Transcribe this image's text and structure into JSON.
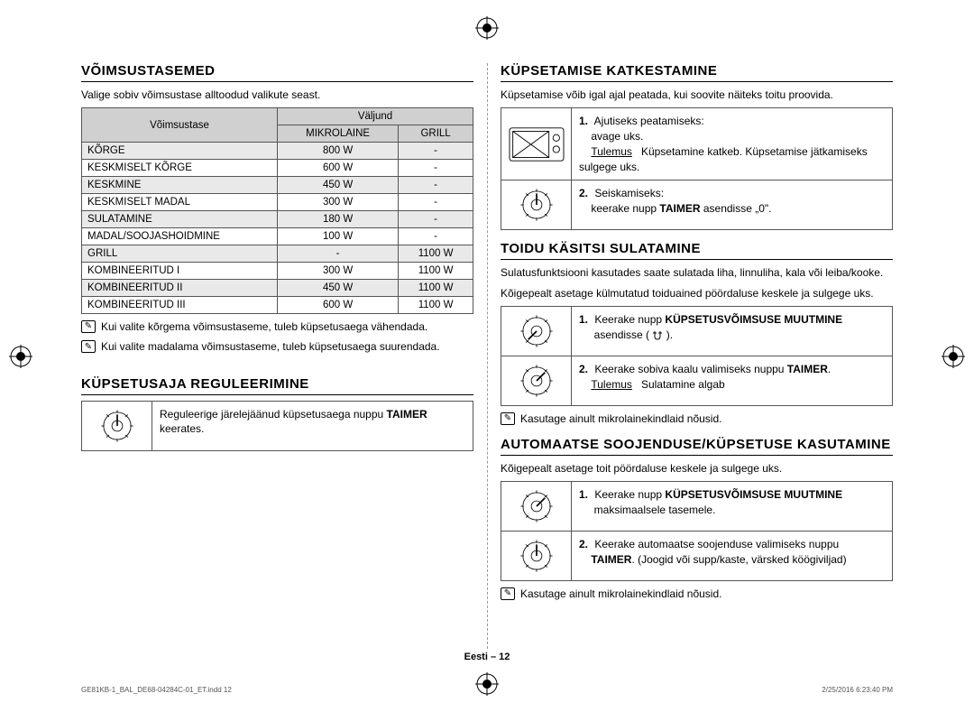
{
  "left": {
    "sec1_title": "VÕIMSUSTASEMED",
    "sec1_intro": "Valige sobiv võimsustase alltoodud valikute seast.",
    "table": {
      "col_level": "Võimsustase",
      "col_output": "Väljund",
      "col_mw": "MIKROLAINE",
      "col_grill": "GRILL",
      "rows": [
        {
          "l": "KÕRGE",
          "m": "800 W",
          "g": "-"
        },
        {
          "l": "KESKMISELT KÕRGE",
          "m": "600 W",
          "g": "-"
        },
        {
          "l": "KESKMINE",
          "m": "450 W",
          "g": "-"
        },
        {
          "l": "KESKMISELT MADAL",
          "m": "300 W",
          "g": "-"
        },
        {
          "l": "SULATAMINE",
          "m": "180 W",
          "g": "-"
        },
        {
          "l": "MADAL/SOOJASHOIDMINE",
          "m": "100 W",
          "g": "-"
        },
        {
          "l": "GRILL",
          "m": "-",
          "g": "1100 W"
        },
        {
          "l": "KOMBINEERITUD I",
          "m": "300 W",
          "g": "1100 W"
        },
        {
          "l": "KOMBINEERITUD II",
          "m": "450 W",
          "g": "1100 W"
        },
        {
          "l": "KOMBINEERITUD III",
          "m": "600 W",
          "g": "1100 W"
        }
      ]
    },
    "note1": "Kui valite kõrgema võimsustaseme, tuleb küpsetusaega vähendada.",
    "note2": "Kui valite madalama võimsustaseme, tuleb küpsetusaega suurendada.",
    "sec2_title": "KÜPSETUSAJA REGULEERIMINE",
    "sec2_text_a": "Reguleerige järelejäänud küpsetusaega nuppu ",
    "sec2_text_b": "TAIMER",
    "sec2_text_c": " keerates."
  },
  "right": {
    "sec3_title": "KÜPSETAMISE KATKESTAMINE",
    "sec3_intro": "Küpsetamise võib igal ajal peatada, kui soovite näiteks toitu proovida.",
    "s3_step1_num": "1.",
    "s3_step1_a": "Ajutiseks peatamiseks:",
    "s3_step1_b": "avage uks.",
    "s3_step1_res_label": "Tulemus",
    "s3_step1_res": "Küpsetamine katkeb. Küpsetamise jätkamiseks sulgege uks.",
    "s3_step2_num": "2.",
    "s3_step2_a": "Seiskamiseks:",
    "s3_step2_b1": "keerake nupp ",
    "s3_step2_b2": "TAIMER",
    "s3_step2_b3": " asendisse „0\".",
    "sec4_title": "TOIDU KÄSITSI SULATAMINE",
    "sec4_intro": "Sulatusfunktsiooni kasutades saate sulatada liha, linnuliha, kala või leiba/kooke.",
    "sec4_intro2": "Kõigepealt asetage külmutatud toiduained pöördaluse keskele ja sulgege uks.",
    "s4_step1_num": "1.",
    "s4_step1_a": "Keerake nupp ",
    "s4_step1_b": "KÜPSETUSVÕIMSUSE MUUTMINE",
    "s4_step1_c": " asendisse ( ",
    "s4_step1_d": " ).",
    "s4_step2_num": "2.",
    "s4_step2_a": "Keerake sobiva kaalu valimiseks nuppu ",
    "s4_step2_b": "TAIMER",
    "s4_step2_c": ".",
    "s4_step2_res_label": "Tulemus",
    "s4_step2_res": "Sulatamine algab",
    "sec4_note": "Kasutage ainult mikrolainekindlaid nõusid.",
    "sec5_title": "AUTOMAATSE SOOJENDUSE/KÜPSETUSE KASUTAMINE",
    "sec5_intro": "Kõigepealt asetage toit pöördaluse keskele ja sulgege uks.",
    "s5_step1_num": "1.",
    "s5_step1_a": "Keerake nupp ",
    "s5_step1_b": "KÜPSETUSVÕIMSUSE MUUTMINE",
    "s5_step1_c": " maksimaalsele tasemele.",
    "s5_step2_num": "2.",
    "s5_step2_a": "Keerake automaatse soojenduse valimiseks nuppu ",
    "s5_step2_b": "TAIMER",
    "s5_step2_c": ". (Joogid või supp/kaste, värsked köögiviljad)",
    "sec5_note": "Kasutage ainult mikrolainekindlaid nõusid."
  },
  "footer": "Eesti – 12",
  "printmark_left": "GE81KB-1_BAL_DE68-04284C-01_ET.indd   12",
  "printmark_right": "2/25/2016   6:23:40 PM"
}
